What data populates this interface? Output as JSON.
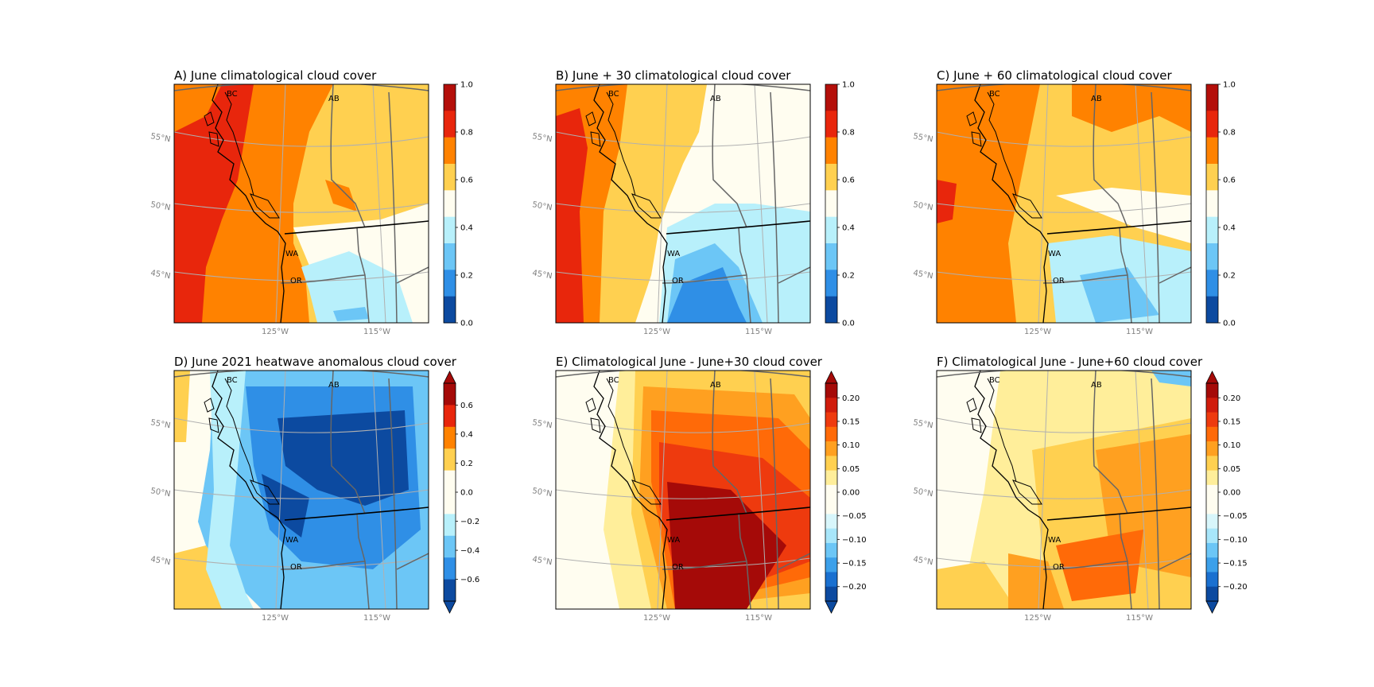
{
  "panels": [
    {
      "title": "A) June climatological cloud cover",
      "style": "clim",
      "colorbar": {
        "ticks": [
          "1.0",
          "0.8",
          "0.6",
          "0.4",
          "0.2",
          "0.0"
        ],
        "colors": [
          "#b40f0a",
          "#e8260c",
          "#ff8200",
          "#ffd050",
          "#fffdf0",
          "#b8f0fb",
          "#6cc6f6",
          "#2f8fe6",
          "#0c4aa0"
        ],
        "extend": false
      }
    },
    {
      "title": "B) June + 30 climatological cloud cover",
      "style": "clim30",
      "colorbar": {
        "ticks": [
          "1.0",
          "0.8",
          "0.6",
          "0.4",
          "0.2",
          "0.0"
        ],
        "colors": [
          "#b40f0a",
          "#e8260c",
          "#ff8200",
          "#ffd050",
          "#fffdf0",
          "#b8f0fb",
          "#6cc6f6",
          "#2f8fe6",
          "#0c4aa0"
        ],
        "extend": false
      }
    },
    {
      "title": "C) June + 60 climatological cloud cover",
      "style": "clim60",
      "colorbar": {
        "ticks": [
          "1.0",
          "0.8",
          "0.6",
          "0.4",
          "0.2",
          "0.0"
        ],
        "colors": [
          "#b40f0a",
          "#e8260c",
          "#ff8200",
          "#ffd050",
          "#fffdf0",
          "#b8f0fb",
          "#6cc6f6",
          "#2f8fe6",
          "#0c4aa0"
        ],
        "extend": false
      }
    },
    {
      "title": "D) June 2021 heatwave anomalous cloud cover",
      "style": "anom",
      "colorbar": {
        "ticks": [
          "0.6",
          "0.4",
          "0.2",
          "0.0",
          "−0.2",
          "−0.4",
          "−0.6"
        ],
        "colors": [
          "#a50a08",
          "#e8260c",
          "#ff8200",
          "#ffd050",
          "#fffdf0",
          "#fffdf0",
          "#b8f0fb",
          "#6cc6f6",
          "#2f8fe6",
          "#0c4aa0"
        ],
        "extend": true
      }
    },
    {
      "title": "E) Climatological June - June+30 cloud cover",
      "style": "diff30",
      "colorbar": {
        "ticks": [
          "0.20",
          "0.15",
          "0.10",
          "0.05",
          "0.00",
          "−0.05",
          "−0.10",
          "−0.15",
          "−0.20"
        ],
        "colors": [
          "#a50a08",
          "#d01c0c",
          "#ee3a0e",
          "#ff6a08",
          "#ffa020",
          "#ffd050",
          "#ffee9a",
          "#fffdf0",
          "#fffdf0",
          "#d8f6fb",
          "#a8e6fa",
          "#6cc6f6",
          "#3ca0ea",
          "#1a70d0",
          "#0c4aa0"
        ],
        "extend": true
      }
    },
    {
      "title": "F) Climatological June - June+60 cloud cover",
      "style": "diff60",
      "colorbar": {
        "ticks": [
          "0.20",
          "0.15",
          "0.10",
          "0.05",
          "0.00",
          "−0.05",
          "−0.10",
          "−0.15",
          "−0.20"
        ],
        "colors": [
          "#a50a08",
          "#d01c0c",
          "#ee3a0e",
          "#ff6a08",
          "#ffa020",
          "#ffd050",
          "#ffee9a",
          "#fffdf0",
          "#fffdf0",
          "#d8f6fb",
          "#a8e6fa",
          "#6cc6f6",
          "#3ca0ea",
          "#1a70d0",
          "#0c4aa0"
        ],
        "extend": true
      }
    }
  ],
  "map_labels": {
    "lat": [
      "55°N",
      "50°N",
      "45°N"
    ],
    "lon": [
      "125°W",
      "115°W"
    ],
    "regions": [
      "BC",
      "AB",
      "WA",
      "OR"
    ]
  }
}
